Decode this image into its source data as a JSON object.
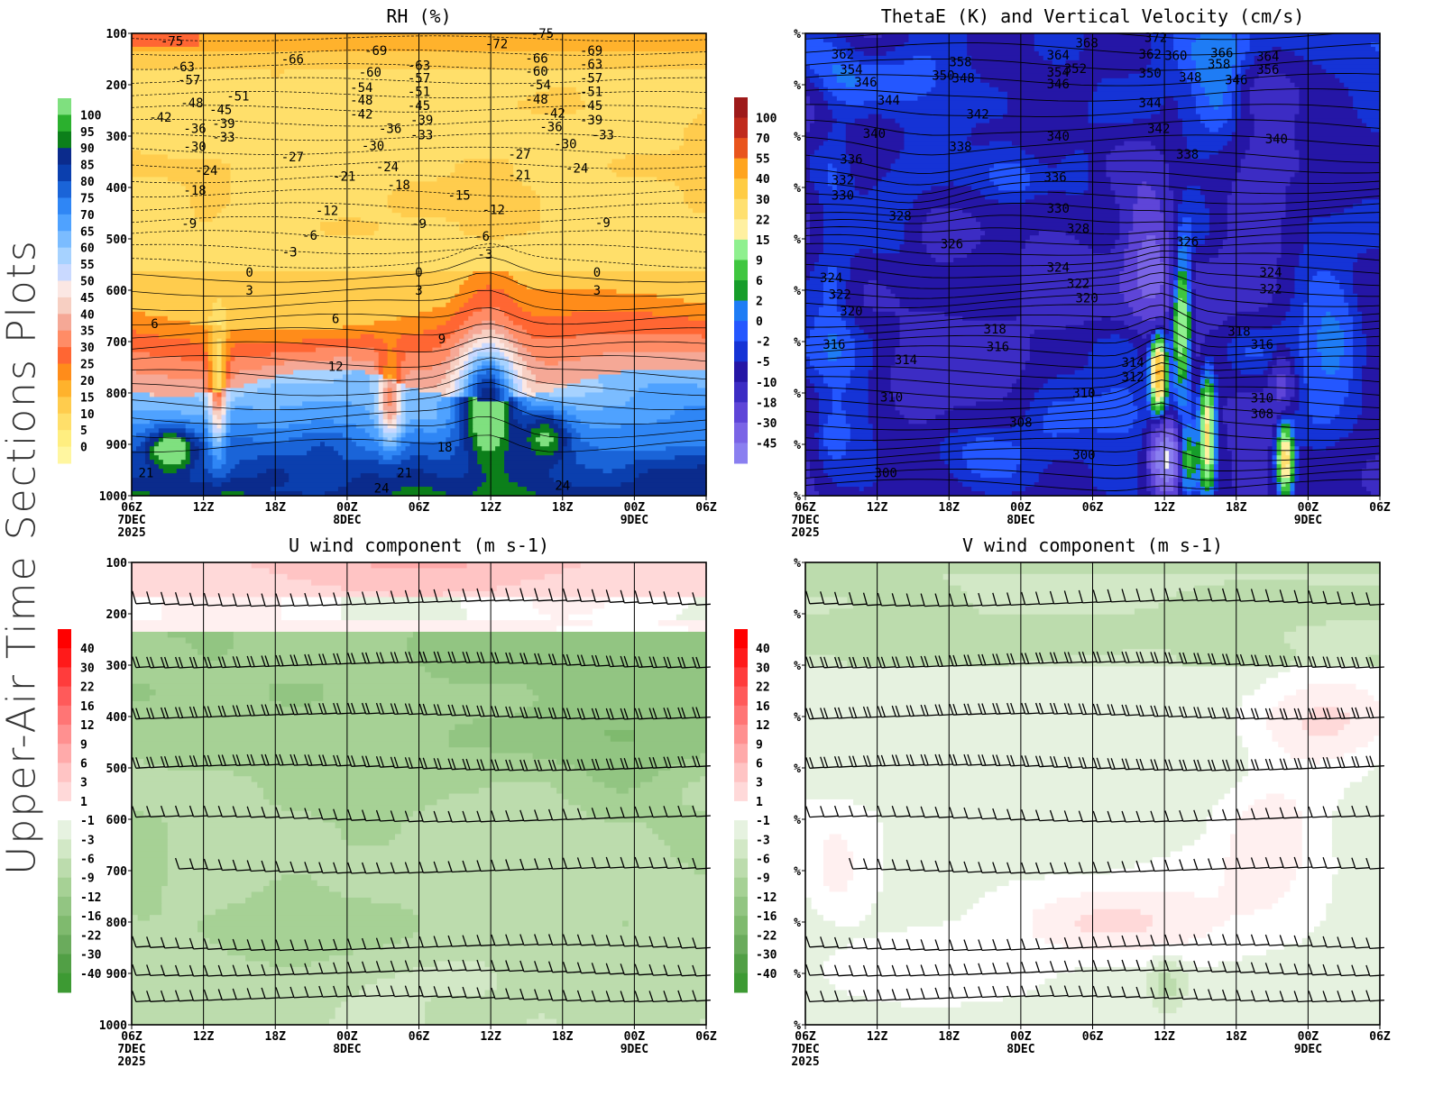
{
  "side_title": "Upper-Air Time Sections Plots",
  "colors": {
    "rh": [
      "#f5f5f5",
      "#fff6a0",
      "#ffee80",
      "#ffdf6a",
      "#ffcc4d",
      "#ffb22c",
      "#ff8c1a",
      "#ff6633",
      "#ff8c66",
      "#f5a896",
      "#f7cfc2",
      "#fbe7e3",
      "#c9d9ff",
      "#a6d2ff",
      "#7bbcff",
      "#4fa2ff",
      "#2f86f5",
      "#1a64d8",
      "#0b3fae",
      "#0b2b8c",
      "#0c7f1a",
      "#2bb02e",
      "#7fe07f"
    ],
    "vv": [
      "#f4f4f4",
      "#8a7ff0",
      "#7a64e6",
      "#5e45d8",
      "#3c2cc4",
      "#2516a6",
      "#1533d6",
      "#2457ff",
      "#1e7cf5",
      "#169d2a",
      "#3fc63f",
      "#8ff08f",
      "#fff0a0",
      "#ffe070",
      "#ffcc44",
      "#ffa41e",
      "#e9541c",
      "#c02a1c",
      "#9e1a1a"
    ],
    "wind": [
      "#2a8c23",
      "#3d9a33",
      "#519f45",
      "#6aab5c",
      "#7fba6e",
      "#92c582",
      "#a6d195",
      "#bcdcad",
      "#d2e8c6",
      "#e6f2e0",
      "#ffffff",
      "#fff0f0",
      "#ffd9d9",
      "#ffc4c4",
      "#ffaaaa",
      "#ff9090",
      "#ff7575",
      "#ff5a5a",
      "#ff3c3c",
      "#ff1a1a",
      "#ff0000"
    ]
  },
  "chart_data": [
    {
      "id": "rh",
      "type": "heatmap",
      "title": "RH (%)",
      "xlabel": "",
      "ylabel": "",
      "y_labels": [
        "100",
        "200",
        "300",
        "400",
        "500",
        "600",
        "700",
        "800",
        "900",
        "1000"
      ],
      "x_labels": [
        "06Z",
        "12Z",
        "18Z",
        "00Z",
        "06Z",
        "12Z",
        "18Z",
        "00Z",
        "06Z"
      ],
      "x_date_labels": [
        {
          "i": 0,
          "lines": [
            "7DEC",
            "2025"
          ]
        },
        {
          "i": 3,
          "lines": [
            "8DEC"
          ]
        },
        {
          "i": 7,
          "lines": [
            "9DEC"
          ]
        }
      ],
      "colorbar": {
        "levels": [
          "100",
          "95",
          "90",
          "85",
          "80",
          "75",
          "70",
          "65",
          "60",
          "55",
          "50",
          "45",
          "40",
          "35",
          "30",
          "25",
          "20",
          "15",
          "10",
          "5",
          "0"
        ]
      },
      "contour_labels": [
        {
          "t": -75,
          "x": 0.07,
          "p": 115
        },
        {
          "t": -63,
          "x": 0.09,
          "p": 165
        },
        {
          "t": -57,
          "x": 0.1,
          "p": 190
        },
        {
          "t": -48,
          "x": 0.105,
          "p": 235
        },
        {
          "t": -42,
          "x": 0.05,
          "p": 263
        },
        {
          "t": -36,
          "x": 0.11,
          "p": 285
        },
        {
          "t": -30,
          "x": 0.11,
          "p": 320
        },
        {
          "t": -24,
          "x": 0.13,
          "p": 367
        },
        {
          "t": -18,
          "x": 0.11,
          "p": 405
        },
        {
          "t": -9,
          "x": 0.1,
          "p": 470
        },
        {
          "t": -51,
          "x": 0.185,
          "p": 222
        },
        {
          "t": -45,
          "x": 0.155,
          "p": 248
        },
        {
          "t": -39,
          "x": 0.16,
          "p": 275
        },
        {
          "t": -33,
          "x": 0.16,
          "p": 302
        },
        {
          "t": -27,
          "x": 0.28,
          "p": 340
        },
        {
          "t": -66,
          "x": 0.28,
          "p": 150
        },
        {
          "t": -69,
          "x": 0.425,
          "p": 133
        },
        {
          "t": -60,
          "x": 0.415,
          "p": 175
        },
        {
          "t": -54,
          "x": 0.4,
          "p": 205
        },
        {
          "t": -48,
          "x": 0.4,
          "p": 230
        },
        {
          "t": -42,
          "x": 0.4,
          "p": 257
        },
        {
          "t": -36,
          "x": 0.45,
          "p": 285
        },
        {
          "t": -30,
          "x": 0.42,
          "p": 318
        },
        {
          "t": -24,
          "x": 0.445,
          "p": 360
        },
        {
          "t": -21,
          "x": 0.37,
          "p": 378
        },
        {
          "t": -18,
          "x": 0.465,
          "p": 395
        },
        {
          "t": -12,
          "x": 0.34,
          "p": 445
        },
        {
          "t": -6,
          "x": 0.31,
          "p": 493
        },
        {
          "t": -3,
          "x": 0.275,
          "p": 525
        },
        {
          "t": 0,
          "x": 0.205,
          "p": 565
        },
        {
          "t": 3,
          "x": 0.205,
          "p": 600
        },
        {
          "t": 6,
          "x": 0.04,
          "p": 665
        },
        {
          "t": 6,
          "x": 0.355,
          "p": 655
        },
        {
          "t": -63,
          "x": 0.5,
          "p": 162
        },
        {
          "t": -57,
          "x": 0.5,
          "p": 187
        },
        {
          "t": -51,
          "x": 0.5,
          "p": 213
        },
        {
          "t": -45,
          "x": 0.5,
          "p": 240
        },
        {
          "t": -39,
          "x": 0.505,
          "p": 268
        },
        {
          "t": -33,
          "x": 0.505,
          "p": 297
        },
        {
          "t": -9,
          "x": 0.5,
          "p": 470
        },
        {
          "t": 0,
          "x": 0.5,
          "p": 565
        },
        {
          "t": 3,
          "x": 0.5,
          "p": 600
        },
        {
          "t": 9,
          "x": 0.54,
          "p": 695
        },
        {
          "t": 12,
          "x": 0.355,
          "p": 748
        },
        {
          "t": -72,
          "x": 0.635,
          "p": 120
        },
        {
          "t": -15,
          "x": 0.57,
          "p": 415
        },
        {
          "t": -12,
          "x": 0.63,
          "p": 443
        },
        {
          "t": -6,
          "x": 0.61,
          "p": 495
        },
        {
          "t": -3,
          "x": 0.615,
          "p": 530
        },
        {
          "t": -27,
          "x": 0.675,
          "p": 335
        },
        {
          "t": -21,
          "x": 0.675,
          "p": 375
        },
        {
          "t": 18,
          "x": 0.545,
          "p": 905
        },
        {
          "t": 21,
          "x": 0.025,
          "p": 955
        },
        {
          "t": 21,
          "x": 0.475,
          "p": 955
        },
        {
          "t": 24,
          "x": 0.435,
          "p": 985
        },
        {
          "t": 24,
          "x": 0.75,
          "p": 980
        },
        {
          "t": -75,
          "x": 0.715,
          "p": 100
        },
        {
          "t": -66,
          "x": 0.705,
          "p": 148
        },
        {
          "t": -60,
          "x": 0.705,
          "p": 174
        },
        {
          "t": -54,
          "x": 0.71,
          "p": 200
        },
        {
          "t": -48,
          "x": 0.705,
          "p": 228
        },
        {
          "t": -42,
          "x": 0.735,
          "p": 255
        },
        {
          "t": -36,
          "x": 0.73,
          "p": 282
        },
        {
          "t": -30,
          "x": 0.755,
          "p": 315
        },
        {
          "t": -24,
          "x": 0.775,
          "p": 362
        },
        {
          "t": -69,
          "x": 0.8,
          "p": 133
        },
        {
          "t": -63,
          "x": 0.8,
          "p": 160
        },
        {
          "t": -57,
          "x": 0.8,
          "p": 187
        },
        {
          "t": -51,
          "x": 0.8,
          "p": 213
        },
        {
          "t": -45,
          "x": 0.8,
          "p": 240
        },
        {
          "t": -39,
          "x": 0.8,
          "p": 268
        },
        {
          "t": -33,
          "x": 0.82,
          "p": 297
        },
        {
          "t": -9,
          "x": 0.82,
          "p": 468
        },
        {
          "t": 0,
          "x": 0.81,
          "p": 565
        },
        {
          "t": 3,
          "x": 0.81,
          "p": 600
        }
      ]
    },
    {
      "id": "vv",
      "type": "heatmap",
      "title": "ThetaE (K) and Vertical Velocity (cm/s)",
      "xlabel": "",
      "ylabel": "",
      "y_labels": [
        "%",
        "%",
        "%",
        "%",
        "%",
        "%",
        "%",
        "%",
        "%",
        "%"
      ],
      "x_labels": [
        "06Z",
        "12Z",
        "18Z",
        "00Z",
        "06Z",
        "12Z",
        "18Z",
        "00Z",
        "06Z"
      ],
      "x_date_labels": [
        {
          "i": 0,
          "lines": [
            "7DEC",
            "2025"
          ]
        },
        {
          "i": 3,
          "lines": [
            "8DEC"
          ]
        },
        {
          "i": 7,
          "lines": [
            "9DEC"
          ]
        }
      ],
      "colorbar": {
        "levels": [
          "100",
          "70",
          "55",
          "40",
          "30",
          "22",
          "15",
          "9",
          "6",
          "2",
          "0",
          "-2",
          "-5",
          "-10",
          "-18",
          "-30",
          "-45"
        ]
      },
      "contour_labels": [
        {
          "t": 362,
          "x": 0.065,
          "p": 140
        },
        {
          "t": 354,
          "x": 0.08,
          "p": 170
        },
        {
          "t": 346,
          "x": 0.105,
          "p": 195
        },
        {
          "t": 344,
          "x": 0.145,
          "p": 230
        },
        {
          "t": 340,
          "x": 0.12,
          "p": 295
        },
        {
          "t": 336,
          "x": 0.08,
          "p": 345
        },
        {
          "t": 332,
          "x": 0.065,
          "p": 385
        },
        {
          "t": 330,
          "x": 0.065,
          "p": 415
        },
        {
          "t": 328,
          "x": 0.165,
          "p": 455
        },
        {
          "t": 324,
          "x": 0.045,
          "p": 575
        },
        {
          "t": 322,
          "x": 0.06,
          "p": 608
        },
        {
          "t": 320,
          "x": 0.08,
          "p": 640
        },
        {
          "t": 316,
          "x": 0.05,
          "p": 705
        },
        {
          "t": 314,
          "x": 0.175,
          "p": 735
        },
        {
          "t": 310,
          "x": 0.15,
          "p": 808
        },
        {
          "t": 308,
          "x": 0.375,
          "p": 857
        },
        {
          "t": 300,
          "x": 0.14,
          "p": 955
        },
        {
          "t": 358,
          "x": 0.27,
          "p": 155
        },
        {
          "t": 350,
          "x": 0.24,
          "p": 182
        },
        {
          "t": 348,
          "x": 0.275,
          "p": 187
        },
        {
          "t": 342,
          "x": 0.3,
          "p": 257
        },
        {
          "t": 338,
          "x": 0.27,
          "p": 320
        },
        {
          "t": 326,
          "x": 0.255,
          "p": 510
        },
        {
          "t": 318,
          "x": 0.33,
          "p": 675
        },
        {
          "t": 316,
          "x": 0.335,
          "p": 710
        },
        {
          "t": 364,
          "x": 0.44,
          "p": 142
        },
        {
          "t": 354,
          "x": 0.44,
          "p": 175
        },
        {
          "t": 346,
          "x": 0.44,
          "p": 198
        },
        {
          "t": 340,
          "x": 0.44,
          "p": 300
        },
        {
          "t": 336,
          "x": 0.435,
          "p": 380
        },
        {
          "t": 330,
          "x": 0.44,
          "p": 440
        },
        {
          "t": 328,
          "x": 0.475,
          "p": 480
        },
        {
          "t": 324,
          "x": 0.44,
          "p": 555
        },
        {
          "t": 322,
          "x": 0.475,
          "p": 587
        },
        {
          "t": 320,
          "x": 0.49,
          "p": 615
        },
        {
          "t": 310,
          "x": 0.485,
          "p": 800
        },
        {
          "t": 300,
          "x": 0.485,
          "p": 920
        },
        {
          "t": 368,
          "x": 0.49,
          "p": 118
        },
        {
          "t": 352,
          "x": 0.47,
          "p": 168
        },
        {
          "t": 362,
          "x": 0.6,
          "p": 140
        },
        {
          "t": 372,
          "x": 0.61,
          "p": 108
        },
        {
          "t": 360,
          "x": 0.645,
          "p": 143
        },
        {
          "t": 350,
          "x": 0.6,
          "p": 177
        },
        {
          "t": 344,
          "x": 0.6,
          "p": 235
        },
        {
          "t": 342,
          "x": 0.615,
          "p": 285
        },
        {
          "t": 338,
          "x": 0.665,
          "p": 335
        },
        {
          "t": 326,
          "x": 0.665,
          "p": 505
        },
        {
          "t": 314,
          "x": 0.57,
          "p": 740
        },
        {
          "t": 312,
          "x": 0.57,
          "p": 768
        },
        {
          "t": 366,
          "x": 0.725,
          "p": 138
        },
        {
          "t": 358,
          "x": 0.72,
          "p": 160
        },
        {
          "t": 348,
          "x": 0.67,
          "p": 185
        },
        {
          "t": 346,
          "x": 0.75,
          "p": 190
        },
        {
          "t": 364,
          "x": 0.805,
          "p": 145
        },
        {
          "t": 356,
          "x": 0.805,
          "p": 170
        },
        {
          "t": 340,
          "x": 0.82,
          "p": 305
        },
        {
          "t": 324,
          "x": 0.81,
          "p": 565
        },
        {
          "t": 322,
          "x": 0.81,
          "p": 597
        },
        {
          "t": 318,
          "x": 0.755,
          "p": 680
        },
        {
          "t": 316,
          "x": 0.795,
          "p": 705
        },
        {
          "t": 310,
          "x": 0.795,
          "p": 810
        },
        {
          "t": 308,
          "x": 0.795,
          "p": 840
        }
      ]
    },
    {
      "id": "u",
      "type": "heatmap",
      "title": "U wind component (m s-1)",
      "xlabel": "",
      "ylabel": "",
      "y_labels": [
        "100",
        "200",
        "300",
        "400",
        "500",
        "600",
        "700",
        "800",
        "900",
        "1000"
      ],
      "x_labels": [
        "06Z",
        "12Z",
        "18Z",
        "00Z",
        "06Z",
        "12Z",
        "18Z",
        "00Z",
        "06Z"
      ],
      "x_date_labels": [
        {
          "i": 0,
          "lines": [
            "7DEC",
            "2025"
          ]
        },
        {
          "i": 3,
          "lines": [
            "8DEC"
          ]
        },
        {
          "i": 7,
          "lines": [
            "9DEC"
          ]
        }
      ],
      "colorbar": {
        "levels": [
          "40",
          "30",
          "22",
          "16",
          "12",
          "9",
          "6",
          "3",
          "1",
          "-1",
          "-3",
          "-6",
          "-9",
          "-12",
          "-16",
          "-22",
          "-30",
          "-40"
        ]
      }
    },
    {
      "id": "v",
      "type": "heatmap",
      "title": "V wind component (m s-1)",
      "xlabel": "",
      "ylabel": "",
      "y_labels": [
        "%",
        "%",
        "%",
        "%",
        "%",
        "%",
        "%",
        "%",
        "%",
        "%"
      ],
      "x_labels": [
        "06Z",
        "12Z",
        "18Z",
        "00Z",
        "06Z",
        "12Z",
        "18Z",
        "00Z",
        "06Z"
      ],
      "x_date_labels": [
        {
          "i": 0,
          "lines": [
            "7DEC",
            "2025"
          ]
        },
        {
          "i": 3,
          "lines": [
            "8DEC"
          ]
        },
        {
          "i": 7,
          "lines": [
            "9DEC"
          ]
        }
      ],
      "colorbar": {
        "levels": [
          "40",
          "30",
          "22",
          "16",
          "12",
          "9",
          "6",
          "3",
          "1",
          "-1",
          "-3",
          "-6",
          "-9",
          "-12",
          "-16",
          "-22",
          "-30",
          "-40"
        ]
      }
    }
  ]
}
